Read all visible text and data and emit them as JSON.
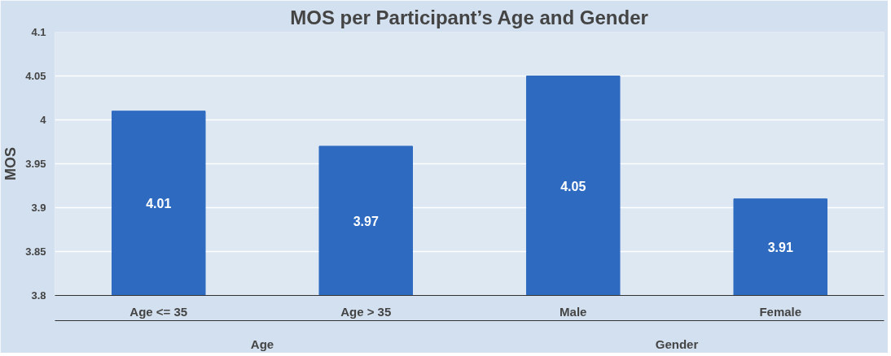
{
  "chart_data": {
    "type": "bar",
    "title": "MOS per Participant’s Age and Gender",
    "ylabel": "MOS",
    "categories": [
      "Age <= 35",
      "Age > 35",
      "Male",
      "Female"
    ],
    "values": [
      4.01,
      3.97,
      4.05,
      3.91
    ],
    "color": "#2e6bc0",
    "ylim": [
      3.8,
      4.1
    ],
    "yticks": [
      3.8,
      3.85,
      3.9,
      3.95,
      4,
      4.05,
      4.1
    ],
    "grid": "y",
    "data_labels": true,
    "annotations": [
      "Age",
      "Gender"
    ]
  }
}
